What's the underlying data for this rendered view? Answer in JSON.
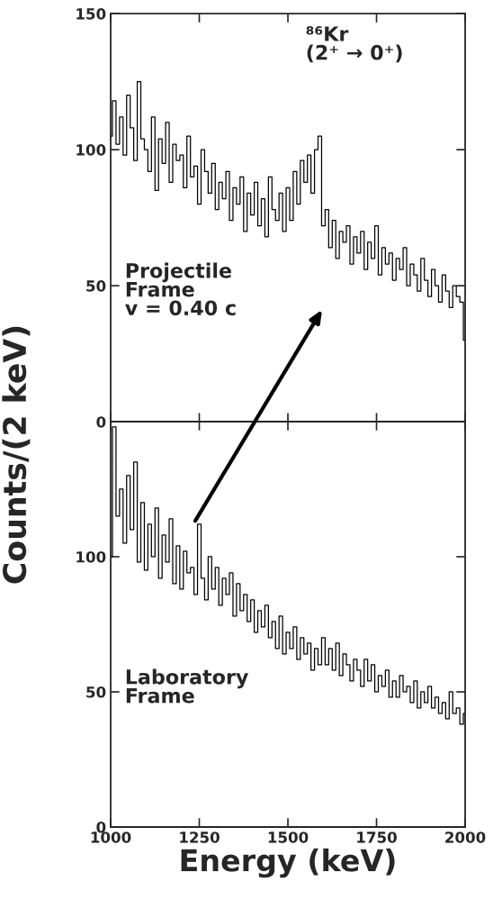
{
  "chart_data": [
    {
      "type": "step",
      "ylabel": "Counts/(2 keV)",
      "xlim": [
        1000,
        2000
      ],
      "ylim": [
        0,
        150
      ],
      "xticks": [
        1000,
        1250,
        1500,
        1750,
        2000
      ],
      "yticks": [
        0,
        50,
        100,
        150
      ],
      "tick_labels": "y",
      "grid": false,
      "legend": false,
      "annotations": [
        "⁸⁶Kr\n(2⁺ → 0⁺)",
        "Projectile\nFrame\nv = 0.40 c"
      ],
      "x": [
        1000,
        1010,
        1020,
        1030,
        1040,
        1050,
        1060,
        1070,
        1080,
        1090,
        1100,
        1110,
        1120,
        1130,
        1140,
        1150,
        1160,
        1170,
        1180,
        1190,
        1200,
        1210,
        1220,
        1230,
        1240,
        1250,
        1260,
        1270,
        1280,
        1290,
        1300,
        1310,
        1320,
        1330,
        1340,
        1350,
        1360,
        1370,
        1380,
        1390,
        1400,
        1410,
        1420,
        1430,
        1440,
        1450,
        1460,
        1470,
        1480,
        1490,
        1500,
        1510,
        1520,
        1530,
        1540,
        1550,
        1560,
        1570,
        1580,
        1590,
        1600,
        1610,
        1620,
        1630,
        1640,
        1650,
        1660,
        1670,
        1680,
        1690,
        1700,
        1710,
        1720,
        1730,
        1740,
        1750,
        1760,
        1770,
        1780,
        1790,
        1800,
        1810,
        1820,
        1830,
        1840,
        1850,
        1860,
        1870,
        1880,
        1890,
        1900,
        1910,
        1920,
        1930,
        1940,
        1950,
        1960,
        1970,
        1980,
        1990,
        2000
      ],
      "series": [
        {
          "color": "#000000",
          "values": [
            105,
            118,
            102,
            112,
            98,
            120,
            108,
            96,
            125,
            104,
            100,
            92,
            112,
            85,
            104,
            95,
            110,
            88,
            102,
            96,
            98,
            86,
            105,
            90,
            94,
            80,
            100,
            92,
            84,
            95,
            78,
            88,
            82,
            92,
            74,
            86,
            80,
            90,
            70,
            84,
            76,
            88,
            72,
            82,
            68,
            90,
            78,
            74,
            84,
            70,
            86,
            74,
            92,
            80,
            96,
            88,
            98,
            84,
            100,
            105,
            72,
            78,
            64,
            74,
            60,
            70,
            66,
            72,
            58,
            68,
            62,
            70,
            56,
            66,
            60,
            72,
            54,
            64,
            58,
            62,
            52,
            60,
            56,
            64,
            50,
            58,
            54,
            48,
            60,
            52,
            46,
            56,
            50,
            44,
            54,
            48,
            42,
            50,
            46,
            44,
            30
          ]
        }
      ]
    },
    {
      "type": "step",
      "xlabel": "Energy (keV)",
      "xlim": [
        1000,
        2000
      ],
      "ylim": [
        0,
        150
      ],
      "xticks": [
        1000,
        1250,
        1500,
        1750,
        2000
      ],
      "yticks": [
        0,
        50,
        100
      ],
      "grid": false,
      "legend": false,
      "annotations": [
        "Laboratory\nFrame"
      ],
      "x": [
        1000,
        1010,
        1020,
        1030,
        1040,
        1050,
        1060,
        1070,
        1080,
        1090,
        1100,
        1110,
        1120,
        1130,
        1140,
        1150,
        1160,
        1170,
        1180,
        1190,
        1200,
        1210,
        1220,
        1230,
        1240,
        1250,
        1260,
        1270,
        1280,
        1290,
        1300,
        1310,
        1320,
        1330,
        1340,
        1350,
        1360,
        1370,
        1380,
        1390,
        1400,
        1410,
        1420,
        1430,
        1440,
        1450,
        1460,
        1470,
        1480,
        1490,
        1500,
        1510,
        1520,
        1530,
        1540,
        1550,
        1560,
        1570,
        1580,
        1590,
        1600,
        1610,
        1620,
        1630,
        1640,
        1650,
        1660,
        1670,
        1680,
        1690,
        1700,
        1710,
        1720,
        1730,
        1740,
        1750,
        1760,
        1770,
        1780,
        1790,
        1800,
        1810,
        1820,
        1830,
        1840,
        1850,
        1860,
        1870,
        1880,
        1890,
        1900,
        1910,
        1920,
        1930,
        1940,
        1950,
        1960,
        1970,
        1980,
        1990,
        2000
      ],
      "series": [
        {
          "color": "#000000",
          "values": [
            100,
            148,
            115,
            125,
            105,
            130,
            110,
            135,
            98,
            120,
            95,
            112,
            100,
            118,
            92,
            108,
            98,
            114,
            90,
            104,
            88,
            102,
            94,
            96,
            86,
            112,
            92,
            84,
            100,
            88,
            96,
            82,
            92,
            86,
            94,
            78,
            90,
            80,
            86,
            76,
            84,
            72,
            80,
            74,
            82,
            70,
            76,
            66,
            78,
            64,
            72,
            66,
            74,
            62,
            70,
            64,
            68,
            58,
            66,
            60,
            70,
            60,
            66,
            58,
            68,
            56,
            64,
            60,
            54,
            62,
            58,
            52,
            62,
            54,
            60,
            50,
            56,
            52,
            58,
            48,
            54,
            48,
            56,
            50,
            52,
            46,
            54,
            44,
            50,
            46,
            52,
            44,
            48,
            42,
            46,
            40,
            50,
            42,
            44,
            38,
            42
          ]
        }
      ]
    }
  ]
}
